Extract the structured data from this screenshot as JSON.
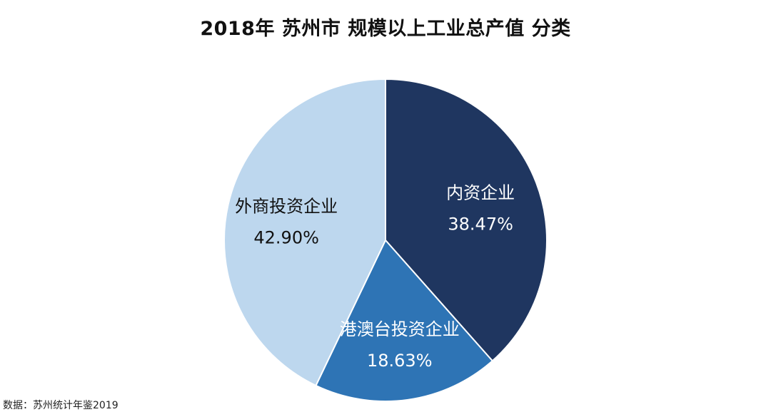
{
  "title": "2018年 苏州市 规模以上工业总产值 分类",
  "source": "数据：苏州统计年鉴2019",
  "chart_data": {
    "type": "pie",
    "title": "2018年 苏州市 规模以上工业总产值 分类",
    "slices": [
      {
        "label": "内资企业",
        "value": 38.47,
        "value_label": "38.47%",
        "color": "#1f3660",
        "label_color": "#ffffff"
      },
      {
        "label": "港澳台投资企业",
        "value": 18.63,
        "value_label": "18.63%",
        "color": "#2e74b5",
        "label_color": "#ffffff"
      },
      {
        "label": "外商投资企业",
        "value": 42.9,
        "value_label": "42.90%",
        "color": "#bdd7ee",
        "label_color": "#111111"
      }
    ],
    "start_angle": "12 o'clock",
    "direction": "clockwise",
    "legend": "none",
    "data_labels": "inside"
  }
}
